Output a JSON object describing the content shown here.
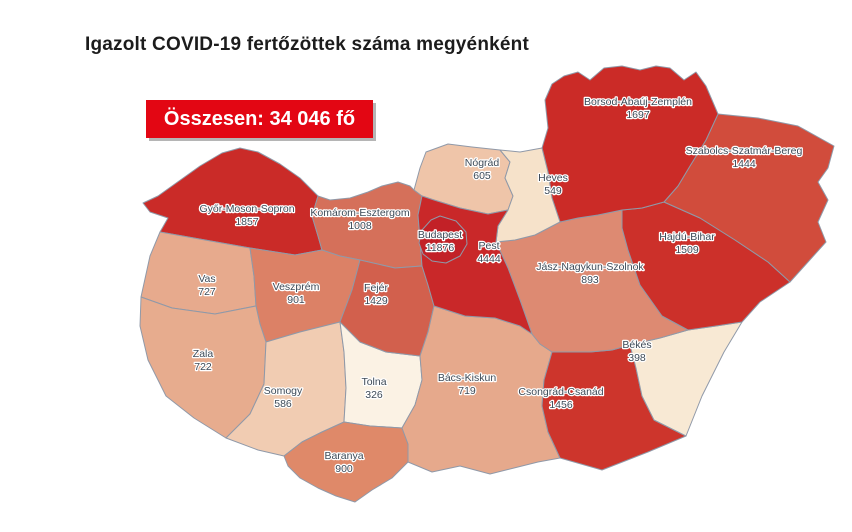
{
  "title": "Igazolt COVID-19 fertőzöttek száma megyénként",
  "total_box": {
    "label": "Összesen: 34 046 fő",
    "background": "#e30613",
    "text_color": "#ffffff"
  },
  "map": {
    "border_color": "#9099a8",
    "label_color": "#3d4a57",
    "counties": [
      {
        "id": "gyor-moson-sopron",
        "name": "Győr-Moson-Sopron",
        "value": "1857",
        "color": "#ca2b28"
      },
      {
        "id": "komarom-esztergom",
        "name": "Komárom-Esztergom",
        "value": "1008",
        "color": "#d5705a"
      },
      {
        "id": "vas",
        "name": "Vas",
        "value": "727",
        "color": "#e7aa8d"
      },
      {
        "id": "veszprem",
        "name": "Veszprém",
        "value": "901",
        "color": "#dc8166"
      },
      {
        "id": "zala",
        "name": "Zala",
        "value": "722",
        "color": "#e7ac8e"
      },
      {
        "id": "somogy",
        "name": "Somogy",
        "value": "586",
        "color": "#f1ccb2"
      },
      {
        "id": "tolna",
        "name": "Tolna",
        "value": "326",
        "color": "#fbf2e4"
      },
      {
        "id": "baranya",
        "name": "Baranya",
        "value": "900",
        "color": "#df8969"
      },
      {
        "id": "fejer",
        "name": "Fejér",
        "value": "1429",
        "color": "#d2604d"
      },
      {
        "id": "bacs-kiskun",
        "name": "Bács-Kiskun",
        "value": "719",
        "color": "#e6a98c"
      },
      {
        "id": "csongrad-csanad",
        "name": "Csongrád-Csanád",
        "value": "1456",
        "color": "#cd352c"
      },
      {
        "id": "bekes",
        "name": "Békés",
        "value": "398",
        "color": "#f8e9d4"
      },
      {
        "id": "jasz-nagykun-szolnok",
        "name": "Jász-Nagykun-Szolnok",
        "value": "893",
        "color": "#dd8a72"
      },
      {
        "id": "hajdu-bihar",
        "name": "Hajdú-Bihar",
        "value": "1509",
        "color": "#cc302a"
      },
      {
        "id": "szabolcs-szatmar-bereg",
        "name": "Szabolcs-Szatmár-Bereg",
        "value": "1444",
        "color": "#d14c3c"
      },
      {
        "id": "borsod-abauj-zemplen",
        "name": "Borsod-Abaúj-Zemplén",
        "value": "1697",
        "color": "#cb2b27"
      },
      {
        "id": "nograd",
        "name": "Nógrád",
        "value": "605",
        "color": "#efc5a9"
      },
      {
        "id": "heves",
        "name": "Heves",
        "value": "549",
        "color": "#f6e2ca"
      },
      {
        "id": "pest",
        "name": "Pest",
        "value": "4444",
        "color": "#c92829"
      },
      {
        "id": "budapest",
        "name": "Budapest",
        "value": "11876",
        "color": "#c22127"
      }
    ]
  },
  "chart_data": {
    "type": "heatmap",
    "subtype": "choropleth-map",
    "region": "Hungary counties",
    "title": "Igazolt COVID-19 fertőzöttek száma megyénként",
    "total_label": "Összesen: 34 046 fő",
    "total": 34046,
    "unit": "fő",
    "legend_position": "none",
    "categories": [
      "Budapest",
      "Pest",
      "Győr-Moson-Sopron",
      "Borsod-Abaúj-Zemplén",
      "Hajdú-Bihar",
      "Csongrád-Csanád",
      "Szabolcs-Szatmár-Bereg",
      "Fejér",
      "Komárom-Esztergom",
      "Veszprém",
      "Baranya",
      "Jász-Nagykun-Szolnok",
      "Vas",
      "Zala",
      "Bács-Kiskun",
      "Nógrád",
      "Somogy",
      "Heves",
      "Békés",
      "Tolna"
    ],
    "values": [
      11876,
      4444,
      1857,
      1697,
      1509,
      1456,
      1444,
      1429,
      1008,
      901,
      900,
      893,
      727,
      722,
      719,
      605,
      586,
      549,
      398,
      326
    ],
    "color_scale": {
      "min_color": "#fbf2e4",
      "max_color": "#c22127",
      "min_value": 326,
      "max_value": 11876
    }
  }
}
